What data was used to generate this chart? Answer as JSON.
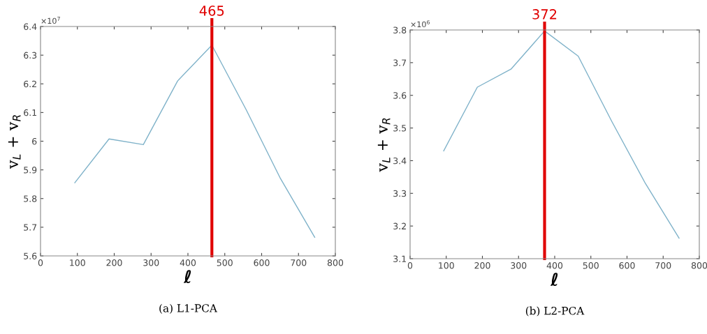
{
  "chart_data": [
    {
      "type": "line",
      "title": "(a) L1-PCA",
      "xlabel": "ℓ",
      "ylabel": "v$_{L}$ + v$_{R}$",
      "x": [
        93,
        186,
        279,
        372,
        465,
        558,
        651,
        744
      ],
      "series": [
        {
          "color": "#7fb2c9",
          "values": [
            5.855,
            6.008,
            5.988,
            6.21,
            6.335,
            6.11,
            5.87,
            5.665
          ]
        }
      ],
      "xlim": [
        0,
        800
      ],
      "xticks": [
        0,
        100,
        200,
        300,
        400,
        500,
        600,
        700,
        800
      ],
      "ylim": [
        5.6,
        6.4
      ],
      "yticks": [
        5.6,
        5.7,
        5.8,
        5.9,
        6,
        6.1,
        6.2,
        6.3,
        6.4
      ],
      "annotations": [
        "×10$^{7}$"
      ],
      "ref_lines": [
        {
          "axis": "x",
          "value": 465,
          "label": "465",
          "color": "#e00000"
        }
      ],
      "grid": false,
      "legend": false,
      "marker": "none",
      "line_style": "solid"
    },
    {
      "type": "line",
      "title": "(b) L2-PCA",
      "xlabel": "ℓ",
      "ylabel": "v$_{L}$ + v$_{R}$",
      "x": [
        93,
        186,
        279,
        372,
        465,
        558,
        651,
        744
      ],
      "series": [
        {
          "color": "#7fb2c9",
          "values": [
            3.43,
            3.625,
            3.68,
            3.797,
            3.72,
            3.52,
            3.33,
            3.163
          ]
        }
      ],
      "xlim": [
        0,
        800
      ],
      "xticks": [
        0,
        100,
        200,
        300,
        400,
        500,
        600,
        700,
        800
      ],
      "ylim": [
        3.1,
        3.8
      ],
      "yticks": [
        3.1,
        3.2,
        3.3,
        3.4,
        3.5,
        3.6,
        3.7,
        3.8
      ],
      "annotations": [
        "×10$^{6}$"
      ],
      "ref_lines": [
        {
          "axis": "x",
          "value": 372,
          "label": "372",
          "color": "#e00000"
        }
      ],
      "grid": false,
      "legend": false,
      "marker": "none",
      "line_style": "solid"
    }
  ]
}
